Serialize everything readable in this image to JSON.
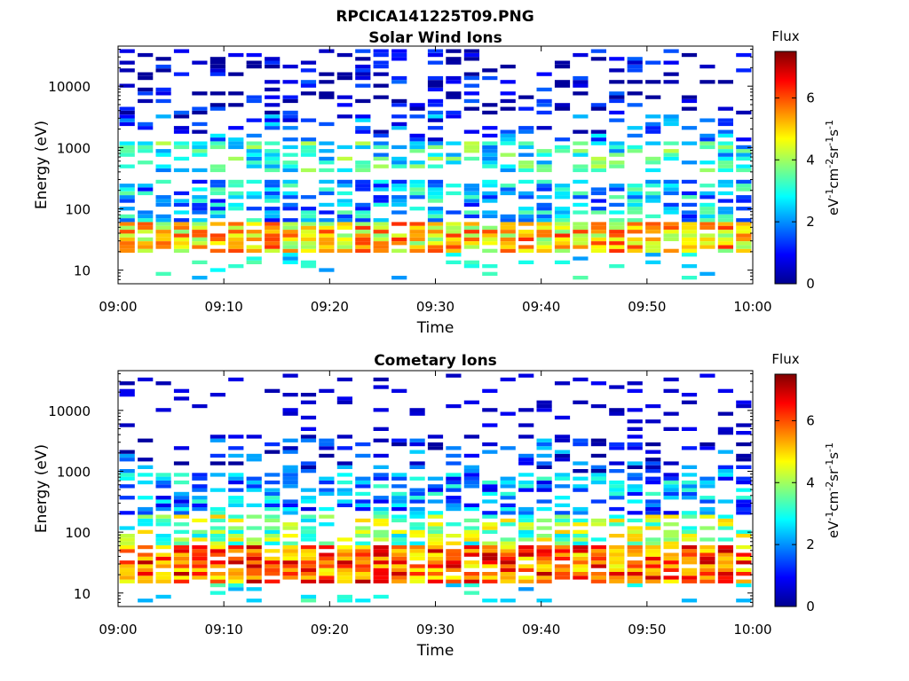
{
  "figure_title": "RPCICA141225T09.PNG",
  "chart_data": [
    {
      "type": "heatmap",
      "title": "Solar Wind Ions",
      "xlabel": "Time",
      "ylabel": "Energy (eV)",
      "x_range": [
        "09:00",
        "10:00"
      ],
      "x_ticks": [
        "09:00",
        "09:10",
        "09:20",
        "09:30",
        "09:40",
        "09:50",
        "10:00"
      ],
      "y_scale": "log",
      "y_range": [
        6,
        45000
      ],
      "y_ticks": [
        "10",
        "100",
        "1000",
        "10000"
      ],
      "colorbar": {
        "label": "Flux",
        "units": "eV-1cm-2sr-1s-1",
        "range": [
          0,
          7.5
        ],
        "ticks": [
          "0",
          "2",
          "4",
          "6"
        ],
        "colormap": "jet"
      },
      "time_slots": 35,
      "energy_bins": 60,
      "notes": "Scan columns repeat roughly every 1.75 minutes; highest flux (5-7) at 20-60 eV; patchy low-level flux (1-3) from 60 eV to 3 keV; sparse blue streaks 3-40 keV.",
      "bands": [
        {
          "e_min": 18,
          "e_max": 60,
          "flux_mean": 5.0
        },
        {
          "e_min": 60,
          "e_max": 300,
          "flux_mean": 2.3
        },
        {
          "e_min": 400,
          "e_max": 1200,
          "flux_mean": 3.0
        },
        {
          "e_min": 1200,
          "e_max": 3500,
          "flux_mean": 1.5
        },
        {
          "e_min": 3500,
          "e_max": 40000,
          "flux_mean": 0.4
        }
      ]
    },
    {
      "type": "heatmap",
      "title": "Cometary Ions",
      "xlabel": "Time",
      "ylabel": "Energy (eV)",
      "x_range": [
        "09:00",
        "10:00"
      ],
      "x_ticks": [
        "09:00",
        "09:10",
        "09:20",
        "09:30",
        "09:40",
        "09:50",
        "10:00"
      ],
      "y_scale": "log",
      "y_range": [
        6,
        45000
      ],
      "y_ticks": [
        "10",
        "100",
        "1000",
        "10000"
      ],
      "colorbar": {
        "label": "Flux",
        "units": "eV-1cm-2sr-1s-1",
        "range": [
          0,
          7.5
        ],
        "ticks": [
          "0",
          "2",
          "4",
          "6"
        ],
        "colormap": "jet"
      },
      "time_slots": 35,
      "energy_bins": 60,
      "notes": "Strong flux (5-7) at 15-60 eV; medium flux (3-5) 60-200 eV; patchy blue/cyan 200-3500 eV; isolated blue streaks above 3.5 keV.",
      "bands": [
        {
          "e_min": 15,
          "e_max": 60,
          "flux_mean": 5.8
        },
        {
          "e_min": 60,
          "e_max": 200,
          "flux_mean": 3.8
        },
        {
          "e_min": 200,
          "e_max": 1000,
          "flux_mean": 2.0
        },
        {
          "e_min": 1000,
          "e_max": 3500,
          "flux_mean": 1.2
        }
      ]
    }
  ]
}
